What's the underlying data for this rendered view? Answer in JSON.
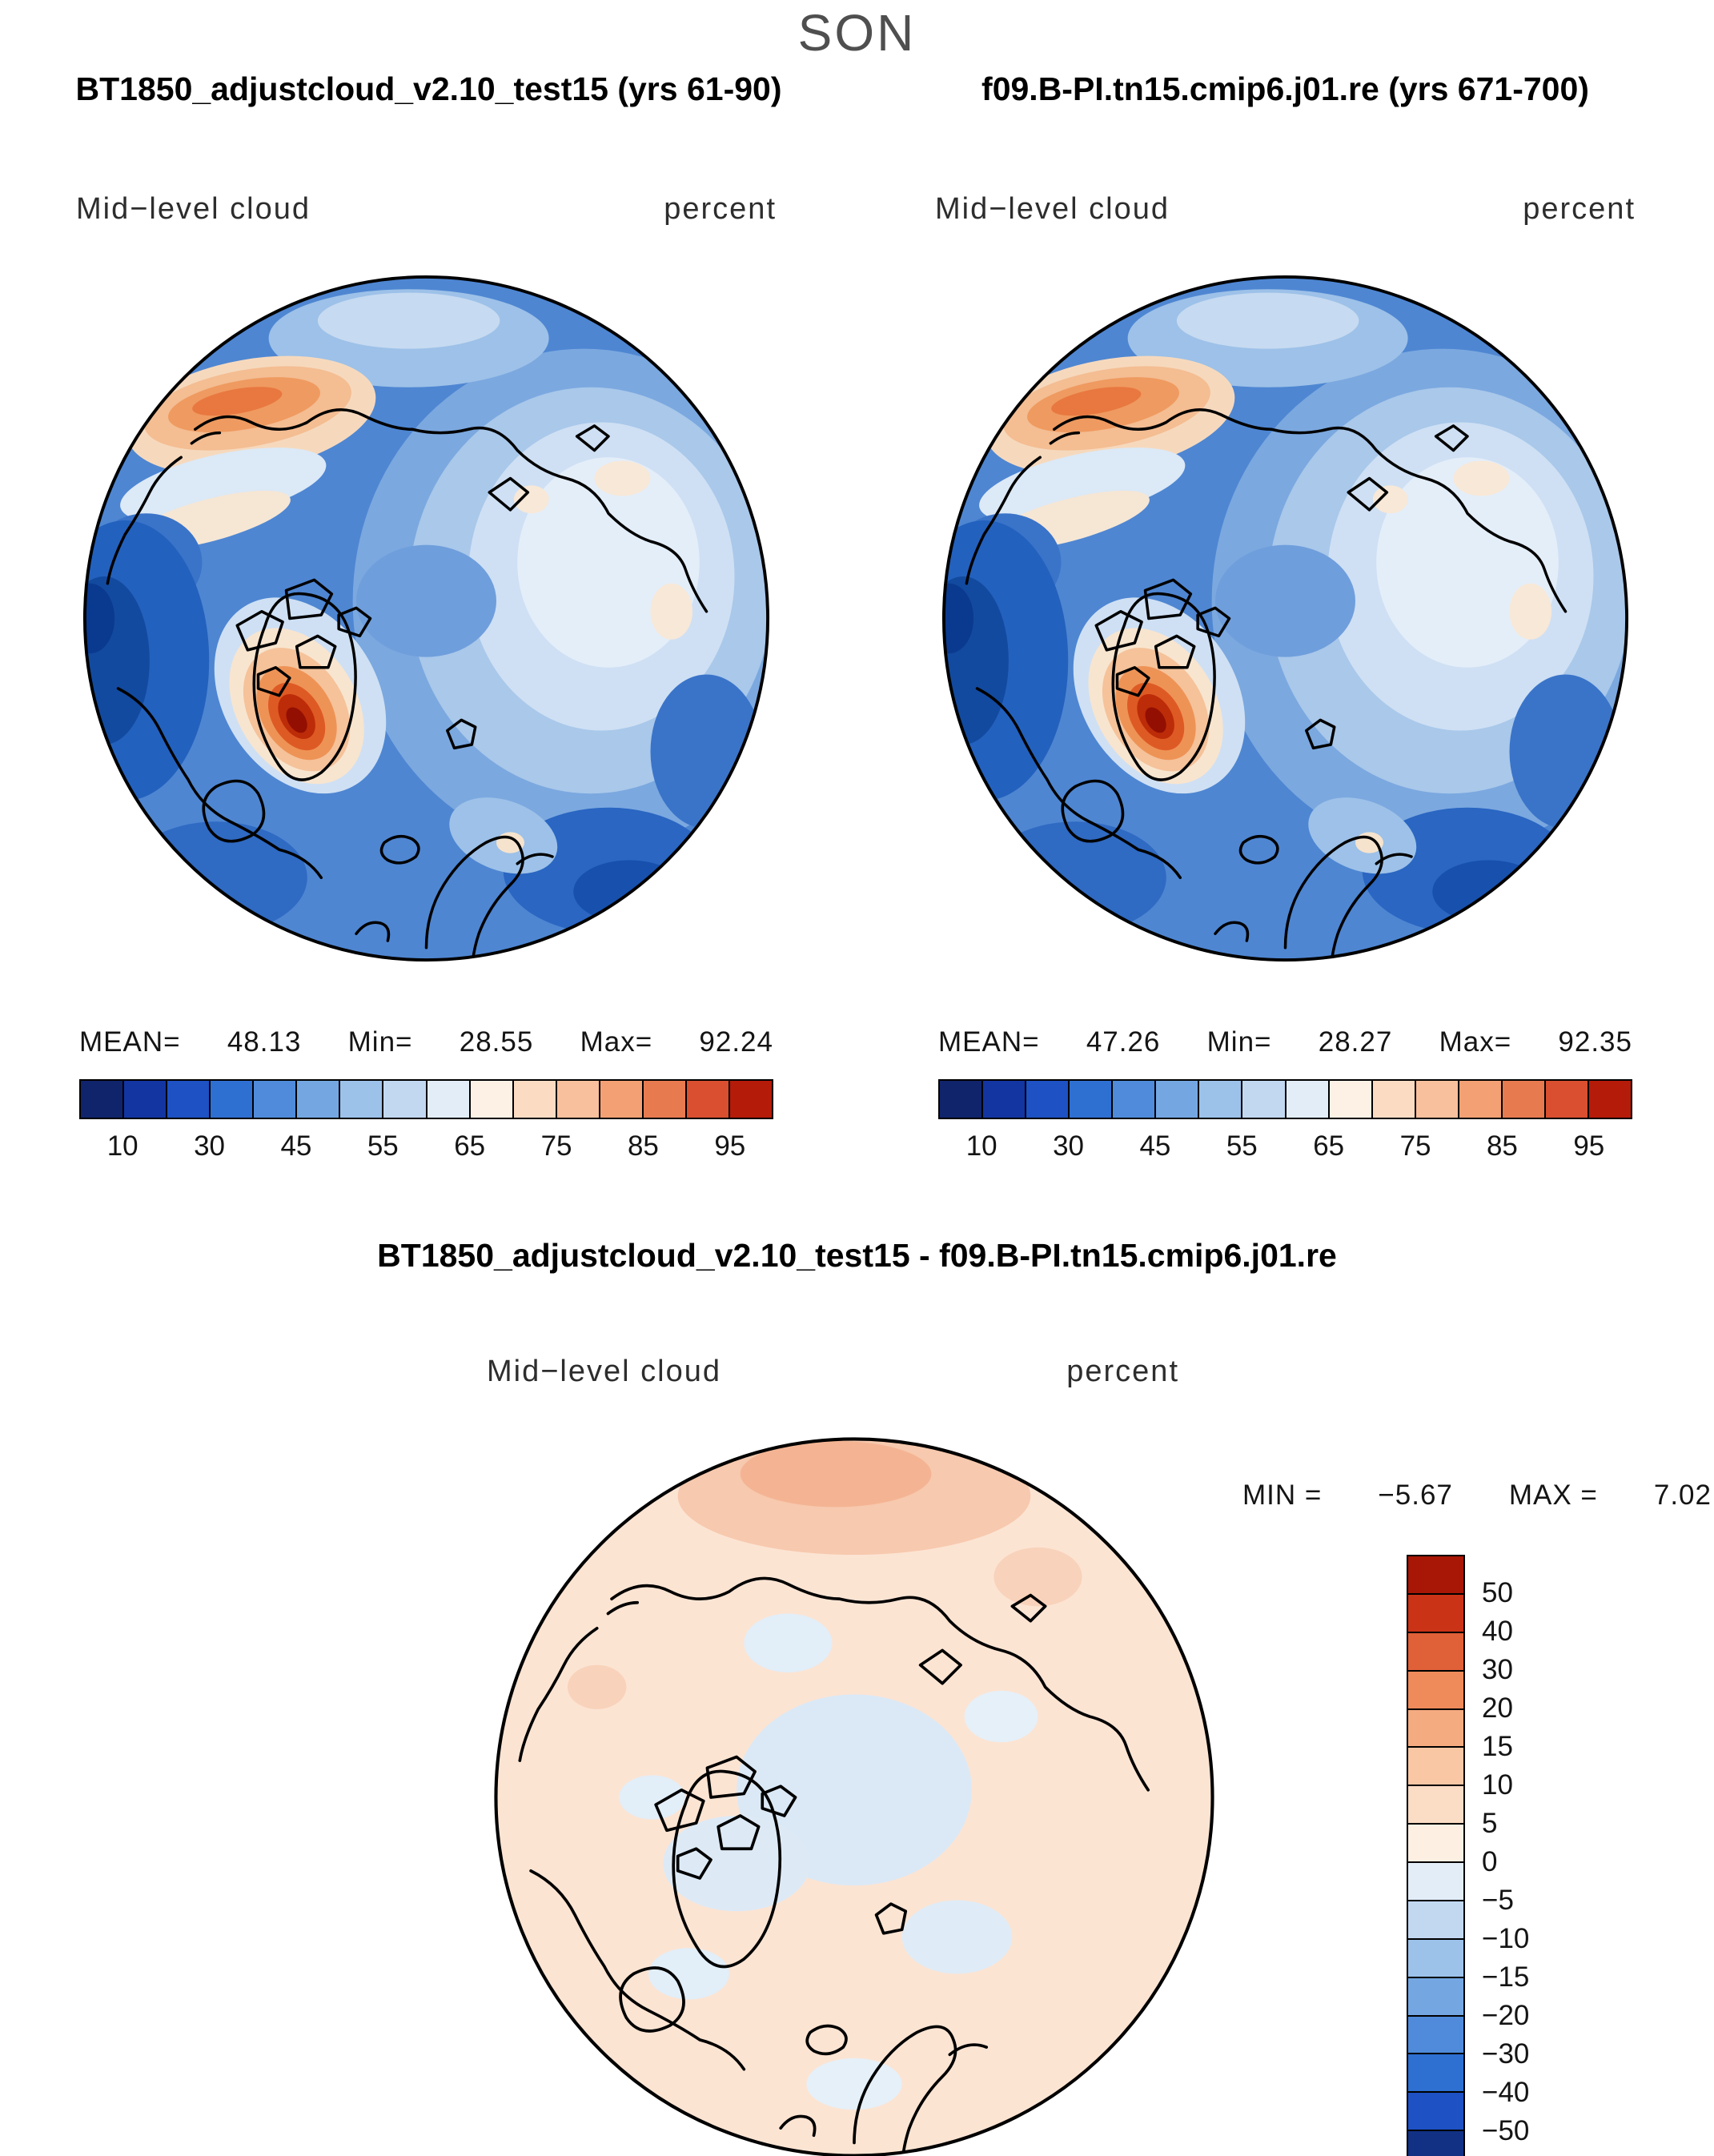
{
  "page_title": "SON",
  "panels": [
    {
      "title": "BT1850_adjustcloud_v2.10_test15 (yrs 61-90)",
      "field_label": "Mid−level cloud",
      "units_label": "percent",
      "stats": {
        "mean_label": "MEAN=",
        "mean": "48.13",
        "min_label": "Min=",
        "min": "28.55",
        "max_label": "Max=",
        "max": "92.24"
      }
    },
    {
      "title": "f09.B-PI.tn15.cmip6.j01.re (yrs 671-700)",
      "field_label": "Mid−level cloud",
      "units_label": "percent",
      "stats": {
        "mean_label": "MEAN=",
        "mean": "47.26",
        "min_label": "Min=",
        "min": "28.27",
        "max_label": "Max=",
        "max": "92.35"
      }
    }
  ],
  "colorbar": {
    "colors": [
      "#10246b",
      "#1335a2",
      "#1d51c4",
      "#2e6fd2",
      "#4f8bda",
      "#74a7e2",
      "#9cc2ea",
      "#c2d8f1",
      "#e2edf8",
      "#fdf1e5",
      "#fbdcc3",
      "#f8c09c",
      "#f2a074",
      "#e87a50",
      "#d94f2f",
      "#b51b09"
    ],
    "tick_labels": [
      "10",
      "30",
      "45",
      "55",
      "65",
      "75",
      "85",
      "95"
    ]
  },
  "diff": {
    "title": "BT1850_adjustcloud_v2.10_test15 - f09.B-PI.tn15.cmip6.j01.re",
    "field_label": "Mid−level cloud",
    "units_label": "percent",
    "min_label": "MIN =",
    "min": "−5.67",
    "max_label": "MAX =",
    "max": "7.02",
    "colorbar": {
      "colors": [
        "#a81605",
        "#cb3317",
        "#e06038",
        "#ef8a5a",
        "#f5ab80",
        "#f9c7a4",
        "#fbdcc5",
        "#fdf0e3",
        "#e2edf8",
        "#c2d8f1",
        "#9cc2ea",
        "#74a7e2",
        "#4f8bda",
        "#2e6fd2",
        "#1d51c4",
        "#123184"
      ],
      "labels": [
        "50",
        "40",
        "30",
        "20",
        "15",
        "10",
        "5",
        "0",
        "−5",
        "−10",
        "−15",
        "−20",
        "−30",
        "−40",
        "−50"
      ]
    }
  },
  "chart_data": {
    "type": "heatmap",
    "title": "SON",
    "variable": "Mid-level cloud",
    "units": "percent",
    "projection": "north polar stereographic",
    "panels": [
      {
        "name": "BT1850_adjustcloud_v2.10_test15",
        "years": "61-90",
        "mean": 48.13,
        "min": 28.55,
        "max": 92.24,
        "contour_levels": [
          10,
          20,
          30,
          40,
          45,
          50,
          55,
          60,
          65,
          70,
          75,
          80,
          85,
          90,
          95
        ],
        "labeled_ticks": [
          10,
          30,
          45,
          55,
          65,
          75,
          85,
          95
        ],
        "legend_position": "below"
      },
      {
        "name": "f09.B-PI.tn15.cmip6.j01.re",
        "years": "671-700",
        "mean": 47.26,
        "min": 28.27,
        "max": 92.35,
        "contour_levels": [
          10,
          20,
          30,
          40,
          45,
          50,
          55,
          60,
          65,
          70,
          75,
          80,
          85,
          90,
          95
        ],
        "labeled_ticks": [
          10,
          30,
          45,
          55,
          65,
          75,
          85,
          95
        ],
        "legend_position": "below"
      },
      {
        "name": "difference: BT1850_adjustcloud_v2.10_test15 - f09.B-PI.tn15.cmip6.j01.re",
        "min": -5.67,
        "max": 7.02,
        "contour_levels": [
          -50,
          -40,
          -30,
          -20,
          -15,
          -10,
          -5,
          0,
          5,
          10,
          15,
          20,
          30,
          40,
          50
        ],
        "legend_position": "right"
      }
    ]
  }
}
